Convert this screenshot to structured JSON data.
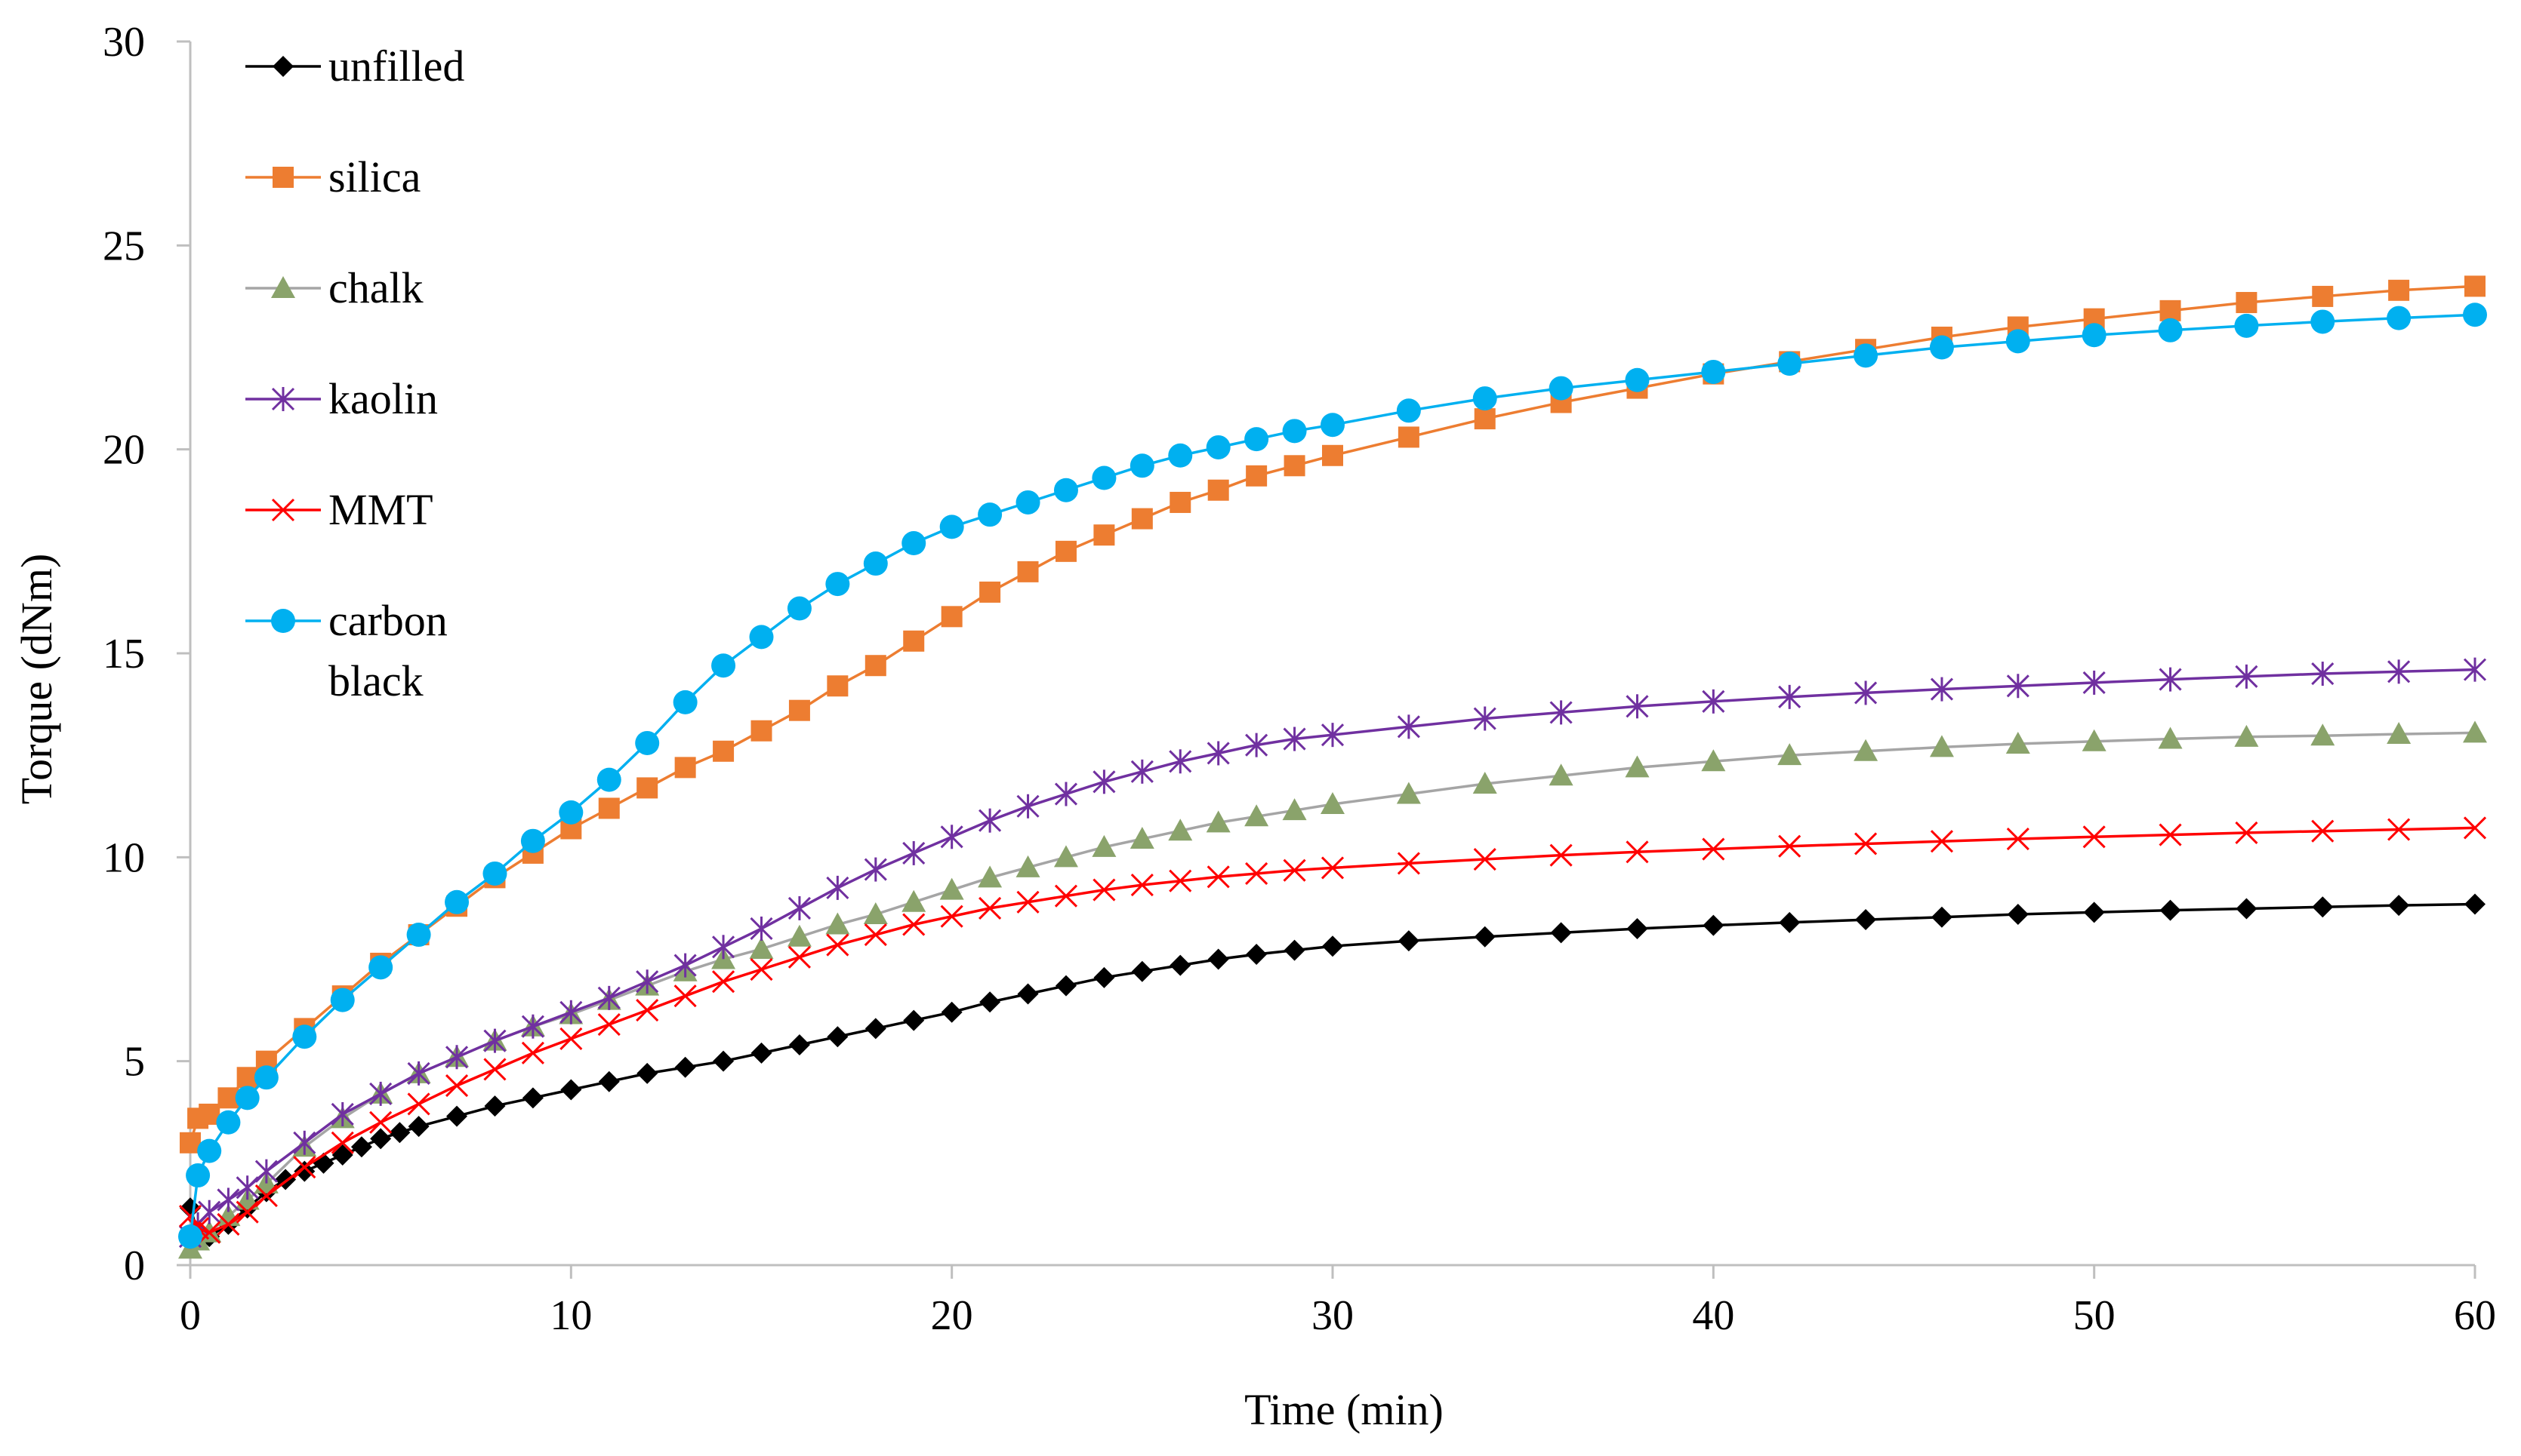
{
  "chart_data": {
    "type": "line",
    "title": "",
    "xlabel": "Time (min)",
    "ylabel": "Torque (dNm)",
    "xlim": [
      0,
      60
    ],
    "ylim": [
      0,
      30
    ],
    "x_ticks": [
      0,
      10,
      20,
      30,
      40,
      50,
      60
    ],
    "y_ticks": [
      0,
      5,
      10,
      15,
      20,
      25,
      30
    ],
    "x_tick_labels": [
      "0",
      "10",
      "20",
      "30",
      "40",
      "50",
      "60"
    ],
    "y_tick_labels": [
      "0",
      "5",
      "10",
      "15",
      "20",
      "25",
      "30"
    ],
    "grid": false,
    "legend_position": "top-left",
    "series": [
      {
        "name": "unfilled",
        "legend_lines": [
          "unfilled"
        ],
        "color": "#000000",
        "marker": "diamond",
        "x": [
          0,
          0.2,
          0.5,
          1,
          1.5,
          2,
          2.5,
          3,
          3.5,
          4,
          4.5,
          5,
          5.5,
          6,
          7,
          8,
          9,
          10,
          11,
          12,
          13,
          14,
          15,
          16,
          17,
          18,
          19,
          20,
          21,
          22,
          23,
          24,
          25,
          26,
          27,
          28,
          29,
          30,
          32,
          34,
          36,
          38,
          40,
          42,
          44,
          46,
          48,
          50,
          52,
          54,
          56,
          58,
          60
        ],
        "y": [
          1.4,
          0.8,
          0.7,
          1.0,
          1.4,
          1.8,
          2.1,
          2.3,
          2.5,
          2.7,
          2.9,
          3.1,
          3.25,
          3.4,
          3.65,
          3.9,
          4.1,
          4.3,
          4.5,
          4.7,
          4.85,
          5.0,
          5.2,
          5.4,
          5.6,
          5.8,
          6.0,
          6.2,
          6.45,
          6.65,
          6.85,
          7.05,
          7.2,
          7.35,
          7.5,
          7.62,
          7.72,
          7.82,
          7.95,
          8.05,
          8.15,
          8.25,
          8.33,
          8.4,
          8.47,
          8.53,
          8.6,
          8.65,
          8.7,
          8.74,
          8.78,
          8.82,
          8.85
        ]
      },
      {
        "name": "silica",
        "legend_lines": [
          "silica"
        ],
        "color": "#ED7D31",
        "marker": "square",
        "x": [
          0,
          0.2,
          0.5,
          1,
          1.5,
          2,
          3,
          4,
          5,
          6,
          7,
          8,
          9,
          10,
          11,
          12,
          13,
          14,
          15,
          16,
          17,
          18,
          19,
          20,
          21,
          22,
          23,
          24,
          25,
          26,
          27,
          28,
          29,
          30,
          32,
          34,
          36,
          38,
          40,
          42,
          44,
          46,
          48,
          50,
          52,
          54,
          56,
          58,
          60
        ],
        "y": [
          3.0,
          3.6,
          3.7,
          4.1,
          4.6,
          5.0,
          5.8,
          6.6,
          7.4,
          8.1,
          8.8,
          9.5,
          10.1,
          10.7,
          11.2,
          11.7,
          12.2,
          12.6,
          13.1,
          13.6,
          14.2,
          14.7,
          15.3,
          15.9,
          16.5,
          17.0,
          17.5,
          17.9,
          18.3,
          18.7,
          19.0,
          19.35,
          19.6,
          19.85,
          20.3,
          20.75,
          21.15,
          21.5,
          21.85,
          22.15,
          22.45,
          22.75,
          23.0,
          23.2,
          23.4,
          23.6,
          23.75,
          23.9,
          24.0
        ]
      },
      {
        "name": "chalk",
        "legend_lines": [
          "chalk"
        ],
        "color": "#8AA36B",
        "line_color": "#A5A5A5",
        "marker": "triangle",
        "x": [
          0,
          0.2,
          0.5,
          1,
          1.5,
          2,
          3,
          4,
          5,
          6,
          7,
          8,
          9,
          10,
          11,
          12,
          13,
          14,
          15,
          16,
          17,
          18,
          19,
          20,
          21,
          22,
          23,
          24,
          25,
          26,
          27,
          28,
          29,
          30,
          32,
          34,
          36,
          38,
          40,
          42,
          44,
          46,
          48,
          50,
          52,
          54,
          56,
          58,
          60
        ],
        "y": [
          0.4,
          0.6,
          0.8,
          1.2,
          1.6,
          2.0,
          2.9,
          3.6,
          4.2,
          4.7,
          5.1,
          5.5,
          5.85,
          6.15,
          6.5,
          6.85,
          7.2,
          7.5,
          7.75,
          8.05,
          8.35,
          8.6,
          8.9,
          9.2,
          9.5,
          9.75,
          10.0,
          10.25,
          10.45,
          10.65,
          10.85,
          11.0,
          11.15,
          11.3,
          11.55,
          11.8,
          12.0,
          12.2,
          12.35,
          12.5,
          12.6,
          12.7,
          12.78,
          12.84,
          12.9,
          12.95,
          12.98,
          13.02,
          13.05
        ]
      },
      {
        "name": "kaolin",
        "legend_lines": [
          "kaolin"
        ],
        "color": "#7030A0",
        "marker": "star",
        "x": [
          0,
          0.2,
          0.5,
          1,
          1.5,
          2,
          3,
          4,
          5,
          6,
          7,
          8,
          9,
          10,
          11,
          12,
          13,
          14,
          15,
          16,
          17,
          18,
          19,
          20,
          21,
          22,
          23,
          24,
          25,
          26,
          27,
          28,
          29,
          30,
          32,
          34,
          36,
          38,
          40,
          42,
          44,
          46,
          48,
          50,
          52,
          54,
          56,
          58,
          60
        ],
        "y": [
          0.7,
          1.0,
          1.3,
          1.6,
          1.9,
          2.3,
          3.0,
          3.7,
          4.2,
          4.7,
          5.1,
          5.5,
          5.85,
          6.2,
          6.55,
          6.95,
          7.35,
          7.8,
          8.25,
          8.75,
          9.25,
          9.7,
          10.1,
          10.5,
          10.9,
          11.25,
          11.55,
          11.85,
          12.1,
          12.35,
          12.55,
          12.75,
          12.9,
          13.0,
          13.2,
          13.4,
          13.55,
          13.7,
          13.82,
          13.93,
          14.03,
          14.12,
          14.2,
          14.28,
          14.36,
          14.43,
          14.5,
          14.55,
          14.6
        ]
      },
      {
        "name": "MMT",
        "legend_lines": [
          "MMT"
        ],
        "color": "#FF0000",
        "marker": "x",
        "x": [
          0,
          0.2,
          0.5,
          1,
          1.5,
          2,
          3,
          4,
          5,
          6,
          7,
          8,
          9,
          10,
          11,
          12,
          13,
          14,
          15,
          16,
          17,
          18,
          19,
          20,
          21,
          22,
          23,
          24,
          25,
          26,
          27,
          28,
          29,
          30,
          32,
          34,
          36,
          38,
          40,
          42,
          44,
          46,
          48,
          50,
          52,
          54,
          56,
          58,
          60
        ],
        "y": [
          1.2,
          0.9,
          0.8,
          1.0,
          1.3,
          1.7,
          2.4,
          3.0,
          3.5,
          3.95,
          4.4,
          4.8,
          5.2,
          5.55,
          5.9,
          6.25,
          6.6,
          6.95,
          7.25,
          7.55,
          7.85,
          8.1,
          8.35,
          8.55,
          8.75,
          8.9,
          9.05,
          9.2,
          9.32,
          9.42,
          9.52,
          9.6,
          9.68,
          9.74,
          9.85,
          9.95,
          10.05,
          10.13,
          10.2,
          10.27,
          10.33,
          10.39,
          10.45,
          10.5,
          10.55,
          10.6,
          10.64,
          10.68,
          10.72
        ]
      },
      {
        "name": "carbon black",
        "legend_lines": [
          "carbon",
          "black"
        ],
        "color": "#00B0F0",
        "marker": "circle",
        "x": [
          0,
          0.2,
          0.5,
          1,
          1.5,
          2,
          3,
          4,
          5,
          6,
          7,
          8,
          9,
          10,
          11,
          12,
          13,
          14,
          15,
          16,
          17,
          18,
          19,
          20,
          21,
          22,
          23,
          24,
          25,
          26,
          27,
          28,
          29,
          30,
          32,
          34,
          36,
          38,
          40,
          42,
          44,
          46,
          48,
          50,
          52,
          54,
          56,
          58,
          60
        ],
        "y": [
          0.7,
          2.2,
          2.8,
          3.5,
          4.1,
          4.6,
          5.6,
          6.5,
          7.3,
          8.1,
          8.9,
          9.6,
          10.4,
          11.1,
          11.9,
          12.8,
          13.8,
          14.7,
          15.4,
          16.1,
          16.7,
          17.2,
          17.7,
          18.1,
          18.4,
          18.7,
          19.0,
          19.3,
          19.6,
          19.85,
          20.05,
          20.25,
          20.45,
          20.6,
          20.95,
          21.25,
          21.5,
          21.7,
          21.9,
          22.1,
          22.3,
          22.5,
          22.65,
          22.8,
          22.92,
          23.03,
          23.13,
          23.22,
          23.3
        ]
      }
    ]
  }
}
